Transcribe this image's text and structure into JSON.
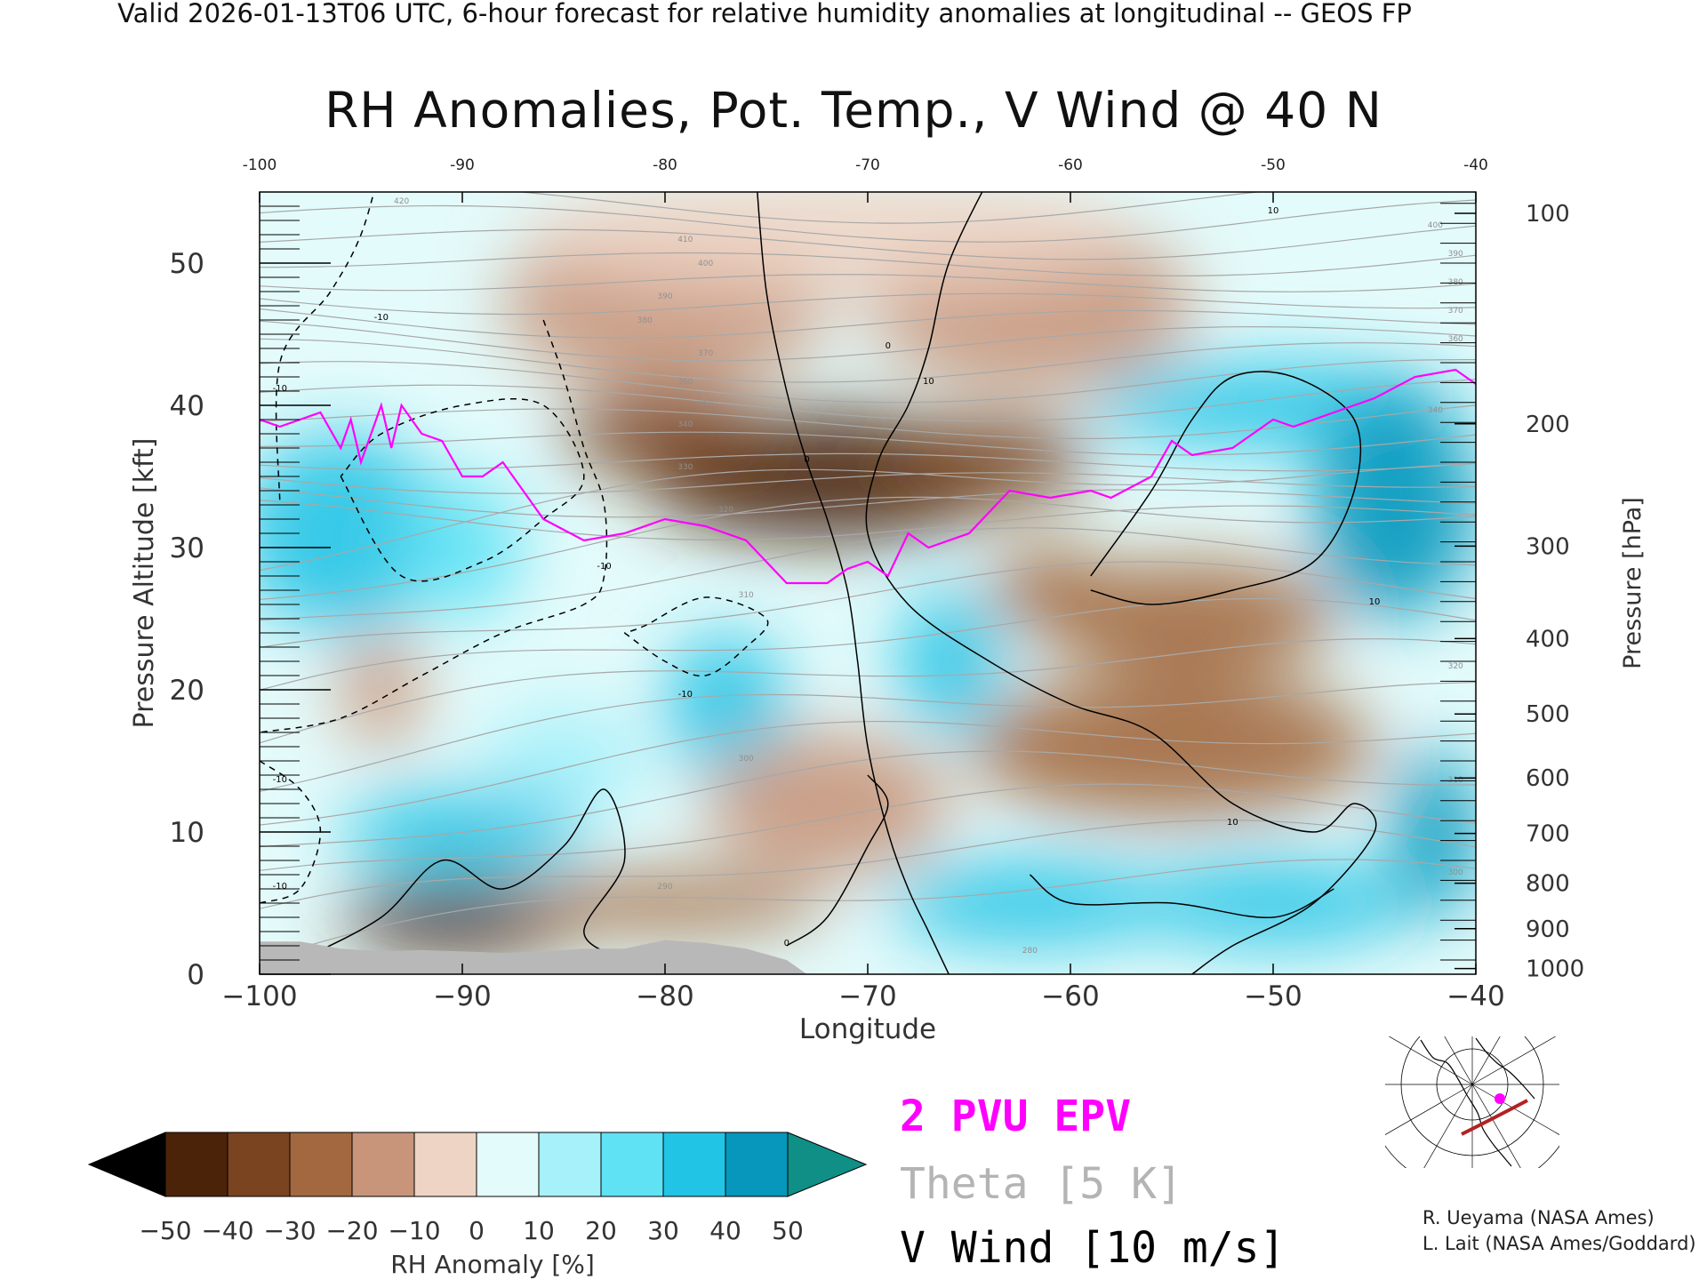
{
  "header": {
    "caption": "Valid 2026-01-13T06 UTC, 6-hour forecast for relative humidity anomalies at longitudinal -- GEOS FP",
    "title": "RH Anomalies, Pot. Temp., V Wind @ 40 N"
  },
  "chart_data": {
    "type": "heatmap",
    "title": "RH Anomalies, Pot. Temp., V Wind @ 40 N",
    "xlabel": "Longitude",
    "ylabel": "Pressure Altitude [kft]",
    "y2label": "Pressure [hPa]",
    "xlim": [
      -100,
      -40
    ],
    "ylim": [
      0,
      55
    ],
    "x_ticks": [
      "-100",
      "-90",
      "-80",
      "-70",
      "-60",
      "-50",
      "-40"
    ],
    "x_ticks_bottom": [
      "−100",
      "−90",
      "−80",
      "−70",
      "−60",
      "−50",
      "−40"
    ],
    "y_ticks": [
      0,
      10,
      20,
      30,
      40,
      50
    ],
    "pressure_ticks": [
      {
        "label": "100",
        "kft": 53.5
      },
      {
        "label": "200",
        "kft": 38.7
      },
      {
        "label": "300",
        "kft": 30.1
      },
      {
        "label": "400",
        "kft": 23.6
      },
      {
        "label": "500",
        "kft": 18.3
      },
      {
        "label": "600",
        "kft": 13.8
      },
      {
        "label": "700",
        "kft": 9.9
      },
      {
        "label": "800",
        "kft": 6.4
      },
      {
        "label": "900",
        "kft": 3.2
      },
      {
        "label": "1000",
        "kft": 0.4
      }
    ],
    "colorbar": {
      "label": "RH Anomaly [%]",
      "ticks": [
        "−50",
        "−40",
        "−30",
        "−20",
        "−10",
        "0",
        "10",
        "20",
        "30",
        "40",
        "50"
      ],
      "bins": [
        {
          "lo": -50,
          "hi": -40,
          "color": "#4b2309"
        },
        {
          "lo": -40,
          "hi": -30,
          "color": "#7a4420"
        },
        {
          "lo": -30,
          "hi": -20,
          "color": "#a3683f"
        },
        {
          "lo": -20,
          "hi": -10,
          "color": "#c8957a"
        },
        {
          "lo": -10,
          "hi": 0,
          "color": "#eed4c4"
        },
        {
          "lo": 0,
          "hi": 10,
          "color": "#e4fbfb"
        },
        {
          "lo": 10,
          "hi": 20,
          "color": "#a6f1fa"
        },
        {
          "lo": 20,
          "hi": 30,
          "color": "#5fe2f4"
        },
        {
          "lo": 30,
          "hi": 40,
          "color": "#22c4e6"
        },
        {
          "lo": 40,
          "hi": 50,
          "color": "#0796bc"
        }
      ],
      "under_color": "#000000",
      "over_color": "#0f8f86"
    },
    "rh_field": [
      {
        "lon": -72,
        "kft": 35,
        "rh": -50,
        "r": [
          9,
          4.5
        ]
      },
      {
        "lon": -80,
        "kft": 38,
        "rh": -30,
        "r": [
          5,
          3
        ]
      },
      {
        "lon": -64,
        "kft": 36,
        "rh": -30,
        "r": [
          5,
          3
        ]
      },
      {
        "lon": -80,
        "kft": 47,
        "rh": -12,
        "r": [
          8,
          6
        ]
      },
      {
        "lon": -62,
        "kft": 47,
        "rh": -12,
        "r": [
          8,
          6
        ]
      },
      {
        "lon": -72,
        "kft": 52,
        "rh": -5,
        "r": [
          15,
          4
        ]
      },
      {
        "lon": -96,
        "kft": 31,
        "rh": 35,
        "r": [
          5,
          7
        ]
      },
      {
        "lon": -90,
        "kft": 30,
        "rh": 30,
        "r": [
          3,
          5
        ]
      },
      {
        "lon": -50,
        "kft": 40,
        "rh": 35,
        "r": [
          9,
          3
        ]
      },
      {
        "lon": -44,
        "kft": 33,
        "rh": 45,
        "r": [
          4,
          8
        ]
      },
      {
        "lon": -54,
        "kft": 25,
        "rh": -25,
        "r": [
          7,
          4
        ]
      },
      {
        "lon": -61,
        "kft": 27,
        "rh": -25,
        "r": [
          3,
          3
        ]
      },
      {
        "lon": -55,
        "kft": 16,
        "rh": -20,
        "r": [
          10,
          5
        ]
      },
      {
        "lon": -77,
        "kft": 19,
        "rh": 35,
        "r": [
          3,
          5
        ]
      },
      {
        "lon": -66,
        "kft": 22,
        "rh": 35,
        "r": [
          2.5,
          5
        ]
      },
      {
        "lon": -85,
        "kft": 15,
        "rh": 20,
        "r": [
          4,
          4
        ]
      },
      {
        "lon": -90,
        "kft": 10,
        "rh": 35,
        "r": [
          6,
          3
        ]
      },
      {
        "lon": -90,
        "kft": 4,
        "rh": -45,
        "r": [
          6,
          2.5
        ]
      },
      {
        "lon": -80,
        "kft": 5,
        "rh": -20,
        "r": [
          8,
          2
        ]
      },
      {
        "lon": -72,
        "kft": 12,
        "rh": -15,
        "r": [
          6,
          5
        ]
      },
      {
        "lon": -62,
        "kft": 5,
        "rh": 40,
        "r": [
          7,
          3
        ]
      },
      {
        "lon": -50,
        "kft": 5,
        "rh": 35,
        "r": [
          7,
          3
        ]
      },
      {
        "lon": -42,
        "kft": 10,
        "rh": 50,
        "r": [
          2,
          6
        ]
      },
      {
        "lon": -94,
        "kft": 20,
        "rh": -15,
        "r": [
          2,
          4
        ]
      }
    ],
    "theta_labels": [
      {
        "label": "420",
        "lon": -93,
        "kft": 54.2
      },
      {
        "label": "410",
        "lon": -79,
        "kft": 51.5
      },
      {
        "label": "400",
        "lon": -78,
        "kft": 49.8
      },
      {
        "label": "390",
        "lon": -80,
        "kft": 47.5
      },
      {
        "label": "380",
        "lon": -81,
        "kft": 45.8
      },
      {
        "label": "370",
        "lon": -78,
        "kft": 43.5
      },
      {
        "label": "360",
        "lon": -79,
        "kft": 41.5
      },
      {
        "label": "350",
        "lon": -78,
        "kft": 40
      },
      {
        "label": "340",
        "lon": -79,
        "kft": 38.5
      },
      {
        "label": "330",
        "lon": -79,
        "kft": 35.5
      },
      {
        "label": "320",
        "lon": -77,
        "kft": 32.5
      },
      {
        "label": "310",
        "lon": -76,
        "kft": 26.5
      },
      {
        "label": "300",
        "lon": -76,
        "kft": 15
      },
      {
        "label": "290",
        "lon": -80,
        "kft": 6
      },
      {
        "label": "280",
        "lon": -62,
        "kft": 1.5
      },
      {
        "label": "420",
        "lon": -45,
        "kft": 55
      },
      {
        "label": "400",
        "lon": -42,
        "kft": 52.5
      },
      {
        "label": "390",
        "lon": -41,
        "kft": 50.5
      },
      {
        "label": "380",
        "lon": -41,
        "kft": 48.5
      },
      {
        "label": "370",
        "lon": -41,
        "kft": 46.5
      },
      {
        "label": "360",
        "lon": -41,
        "kft": 44.5
      },
      {
        "label": "340",
        "lon": -42,
        "kft": 39.5
      },
      {
        "label": "320",
        "lon": -41,
        "kft": 21.5
      },
      {
        "label": "310",
        "lon": -41,
        "kft": 13.5
      },
      {
        "label": "300",
        "lon": -41,
        "kft": 7
      }
    ],
    "wind_labels": [
      {
        "label": "-10",
        "lon": -94,
        "kft": 46
      },
      {
        "label": "-10",
        "lon": -99,
        "kft": 41
      },
      {
        "label": "-10",
        "lon": -83,
        "kft": 28.5
      },
      {
        "label": "-10",
        "lon": -79,
        "kft": 19.5
      },
      {
        "label": "-10",
        "lon": -99,
        "kft": 13.5
      },
      {
        "label": "-10",
        "lon": -99,
        "kft": 6
      },
      {
        "label": "0",
        "lon": -69,
        "kft": 44
      },
      {
        "label": "10",
        "lon": -67,
        "kft": 41.5
      },
      {
        "label": "0",
        "lon": -73,
        "kft": 36
      },
      {
        "label": "10",
        "lon": -52,
        "kft": 10.5
      },
      {
        "label": "10",
        "lon": -45,
        "kft": 26
      },
      {
        "label": "10",
        "lon": -50,
        "kft": 53.5
      },
      {
        "label": "0",
        "lon": -74,
        "kft": 2
      }
    ],
    "epv_2pvu_kft": [
      [
        -100,
        39
      ],
      [
        -99,
        38.5
      ],
      [
        -98,
        39
      ],
      [
        -97,
        39.5
      ],
      [
        -96,
        37
      ],
      [
        -95.5,
        39
      ],
      [
        -95,
        36
      ],
      [
        -94,
        40
      ],
      [
        -93.5,
        37
      ],
      [
        -93,
        40
      ],
      [
        -92,
        38
      ],
      [
        -91,
        37.5
      ],
      [
        -90,
        35
      ],
      [
        -89,
        35
      ],
      [
        -88,
        36
      ],
      [
        -87,
        34
      ],
      [
        -86,
        32
      ],
      [
        -84,
        30.5
      ],
      [
        -82,
        31
      ],
      [
        -80,
        32
      ],
      [
        -78,
        31.5
      ],
      [
        -76,
        30.5
      ],
      [
        -74,
        27.5
      ],
      [
        -72,
        27.5
      ],
      [
        -71,
        28.5
      ],
      [
        -70,
        29
      ],
      [
        -69,
        28
      ],
      [
        -68,
        31
      ],
      [
        -67,
        30
      ],
      [
        -65,
        31
      ],
      [
        -63,
        34
      ],
      [
        -61,
        33.5
      ],
      [
        -59,
        34
      ],
      [
        -58,
        33.5
      ],
      [
        -56,
        35
      ],
      [
        -55,
        37.5
      ],
      [
        -54,
        36.5
      ],
      [
        -52,
        37
      ],
      [
        -50,
        39
      ],
      [
        -49,
        38.5
      ],
      [
        -47,
        39.5
      ],
      [
        -45,
        40.5
      ],
      [
        -43,
        42
      ],
      [
        -41,
        42.5
      ],
      [
        -40,
        41.5
      ]
    ],
    "ground_mask_kft": [
      [
        -100,
        2.3
      ],
      [
        -98,
        2.3
      ],
      [
        -96,
        1.8
      ],
      [
        -94,
        1.6
      ],
      [
        -92,
        1.7
      ],
      [
        -90,
        1.6
      ],
      [
        -88,
        1.5
      ],
      [
        -86,
        1.6
      ],
      [
        -84,
        1.8
      ],
      [
        -82,
        1.8
      ],
      [
        -80,
        2.4
      ],
      [
        -78,
        2.2
      ],
      [
        -76,
        1.8
      ],
      [
        -74,
        1
      ],
      [
        -73,
        0
      ]
    ],
    "legend": {
      "epv": "2 PVU EPV",
      "theta": "Theta [5 K]",
      "vwind": "V Wind [10 m/s]",
      "epv_color": "#ff00ff",
      "theta_color": "#b4b4b4",
      "vwind_color": "#000000"
    }
  },
  "inset_map": {
    "marker_color": "#ff00ff",
    "track_color": "#b22222"
  },
  "credits": {
    "line1": "R. Ueyama (NASA Ames)",
    "line2": "L. Lait (NASA Ames/Goddard)"
  }
}
